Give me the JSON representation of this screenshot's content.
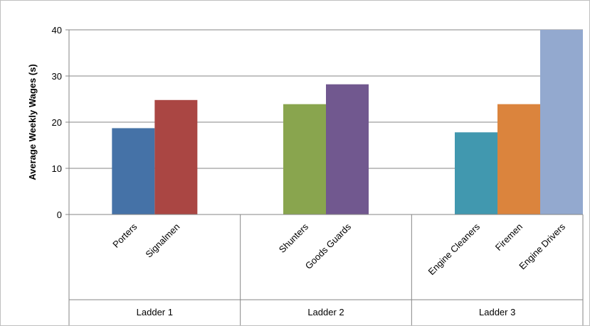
{
  "chart_data": {
    "type": "bar",
    "ylabel": "Average Weekly Wages (s)",
    "ylim": [
      0,
      40
    ],
    "yticks": [
      0,
      10,
      20,
      30,
      40
    ],
    "grid": true,
    "groups": [
      {
        "name": "Ladder 1",
        "bars": [
          {
            "label": "Porters",
            "value": 18.7,
            "color": "#4572A7"
          },
          {
            "label": "Signalmen",
            "value": 24.8,
            "color": "#AA4643"
          }
        ]
      },
      {
        "name": "Ladder 2",
        "bars": [
          {
            "label": "Shunters",
            "value": 23.9,
            "color": "#89A54E"
          },
          {
            "label": "Goods Guards",
            "value": 28.2,
            "color": "#71588F"
          }
        ]
      },
      {
        "name": "Ladder 3",
        "bars": [
          {
            "label": "Engine Cleaners",
            "value": 17.8,
            "color": "#4198AF"
          },
          {
            "label": "Firemen",
            "value": 23.9,
            "color": "#DB843D"
          },
          {
            "label": "Engine Drivers",
            "value": 40,
            "color": "#93A9CF"
          }
        ]
      }
    ]
  }
}
